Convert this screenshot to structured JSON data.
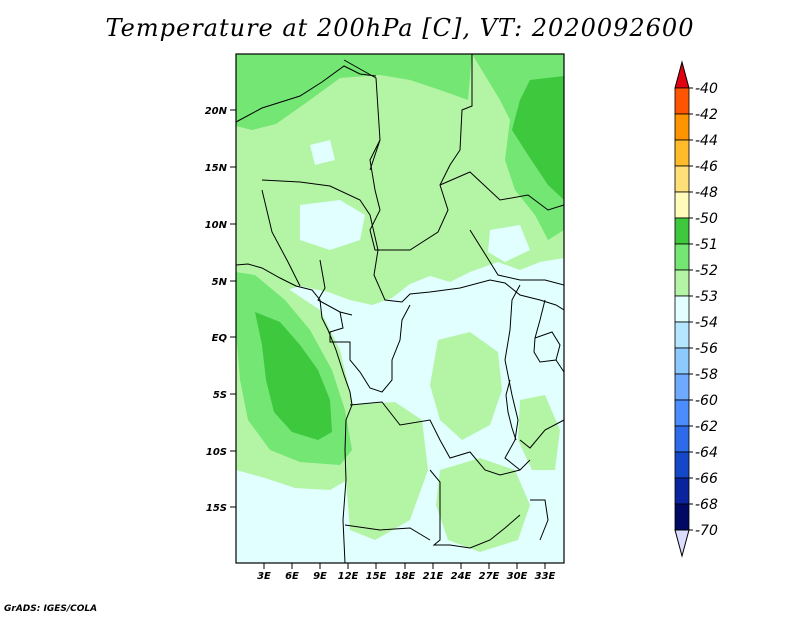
{
  "title": "Temperature at 200hPa [C], VT: 2020092600",
  "credit": "GrADS: IGES/COLA",
  "map": {
    "lat_labels": [
      "20N",
      "15N",
      "10N",
      "5N",
      "EQ",
      "5S",
      "10S",
      "15S"
    ],
    "lon_labels": [
      "3E",
      "6E",
      "9E",
      "12E",
      "15E",
      "18E",
      "21E",
      "24E",
      "27E",
      "30E",
      "33E"
    ],
    "field_colors": {
      "dark": "#3dc83d",
      "mid": "#73e673",
      "light": "#b4f5a5",
      "pale": "#e1ffff"
    }
  },
  "colorbar": {
    "labels": [
      "-40",
      "-42",
      "-44",
      "-46",
      "-48",
      "-50",
      "-51",
      "-52",
      "-53",
      "-54",
      "-56",
      "-58",
      "-60",
      "-62",
      "-64",
      "-66",
      "-68",
      "-70"
    ],
    "colors": [
      "#ff2000",
      "#ff5500",
      "#ff9300",
      "#ffbb2a",
      "#ffdf77",
      "#fffbbb",
      "#3dc83d",
      "#73e673",
      "#b4f5a5",
      "#e1ffff",
      "#b4e6ff",
      "#8cc9ff",
      "#6eaaff",
      "#4b8cff",
      "#2d6bea",
      "#1448c8",
      "#0a24a0",
      "#000a64"
    ],
    "top_color": "#e0000f",
    "bottom_color": "#dcdcff"
  }
}
